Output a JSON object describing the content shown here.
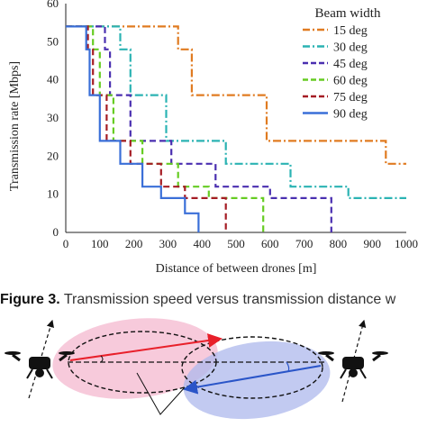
{
  "chart_data": {
    "type": "line",
    "title": "",
    "xlabel": "Distance of between drones [m]",
    "ylabel": "Transmission rate [Mbps]",
    "xlim": [
      0,
      1000
    ],
    "ylim": [
      0,
      60
    ],
    "xticks": [
      0,
      100,
      200,
      300,
      400,
      500,
      600,
      700,
      800,
      900,
      1000
    ],
    "yticks": [
      0,
      10,
      20,
      30,
      40,
      50,
      60
    ],
    "grid": false,
    "legend_title": "Beam width",
    "legend_position": "top-right",
    "series": [
      {
        "name": "15 deg",
        "color": "#e07b21",
        "dash": "dash-dot",
        "x": [
          0,
          330,
          330,
          370,
          370,
          590,
          590,
          940,
          940,
          1000
        ],
        "y": [
          54,
          54,
          48,
          48,
          36,
          36,
          24,
          24,
          18,
          18
        ]
      },
      {
        "name": "30 deg",
        "color": "#2bb3b3",
        "dash": "dash-dot",
        "x": [
          0,
          160,
          160,
          190,
          190,
          295,
          295,
          470,
          470,
          660,
          660,
          830,
          830,
          1000
        ],
        "y": [
          54,
          54,
          48,
          48,
          36,
          36,
          24,
          24,
          18,
          18,
          12,
          12,
          9,
          9
        ]
      },
      {
        "name": "45 deg",
        "color": "#4a2fb0",
        "dash": "dash",
        "x": [
          0,
          115,
          115,
          130,
          130,
          190,
          190,
          310,
          310,
          440,
          440,
          600,
          600,
          780,
          780
        ],
        "y": [
          54,
          54,
          48,
          48,
          36,
          36,
          24,
          24,
          18,
          18,
          12,
          12,
          9,
          9,
          0
        ]
      },
      {
        "name": "60 deg",
        "color": "#66cc22",
        "dash": "dash",
        "x": [
          0,
          80,
          80,
          100,
          100,
          140,
          140,
          225,
          225,
          330,
          330,
          420,
          420,
          580,
          580
        ],
        "y": [
          54,
          54,
          48,
          48,
          36,
          36,
          24,
          24,
          18,
          18,
          12,
          12,
          9,
          9,
          0
        ]
      },
      {
        "name": "75 deg",
        "color": "#a51c24",
        "dash": "dash",
        "x": [
          0,
          65,
          65,
          80,
          80,
          120,
          120,
          190,
          190,
          280,
          280,
          350,
          350,
          470,
          470
        ],
        "y": [
          54,
          54,
          48,
          48,
          36,
          36,
          24,
          24,
          18,
          18,
          12,
          12,
          9,
          9,
          0
        ]
      },
      {
        "name": "90 deg",
        "color": "#3a6fd8",
        "dash": "solid",
        "x": [
          0,
          60,
          60,
          70,
          70,
          100,
          100,
          160,
          160,
          225,
          225,
          280,
          280,
          350,
          350,
          390,
          390
        ],
        "y": [
          54,
          54,
          48,
          48,
          36,
          36,
          24,
          24,
          18,
          18,
          12,
          12,
          9,
          9,
          5,
          5,
          0
        ]
      }
    ]
  },
  "caption": {
    "label": "Figure 3.",
    "text": " Transmission speed versus transmission distance w"
  },
  "diagram": {
    "drone_left_icon": "drone-icon",
    "drone_right_icon": "drone-icon",
    "beam_left_color": "#f4b8cf",
    "beam_right_color": "#aeb8ec",
    "link_left_color": "#e8202a",
    "link_right_color": "#2a55c8"
  }
}
